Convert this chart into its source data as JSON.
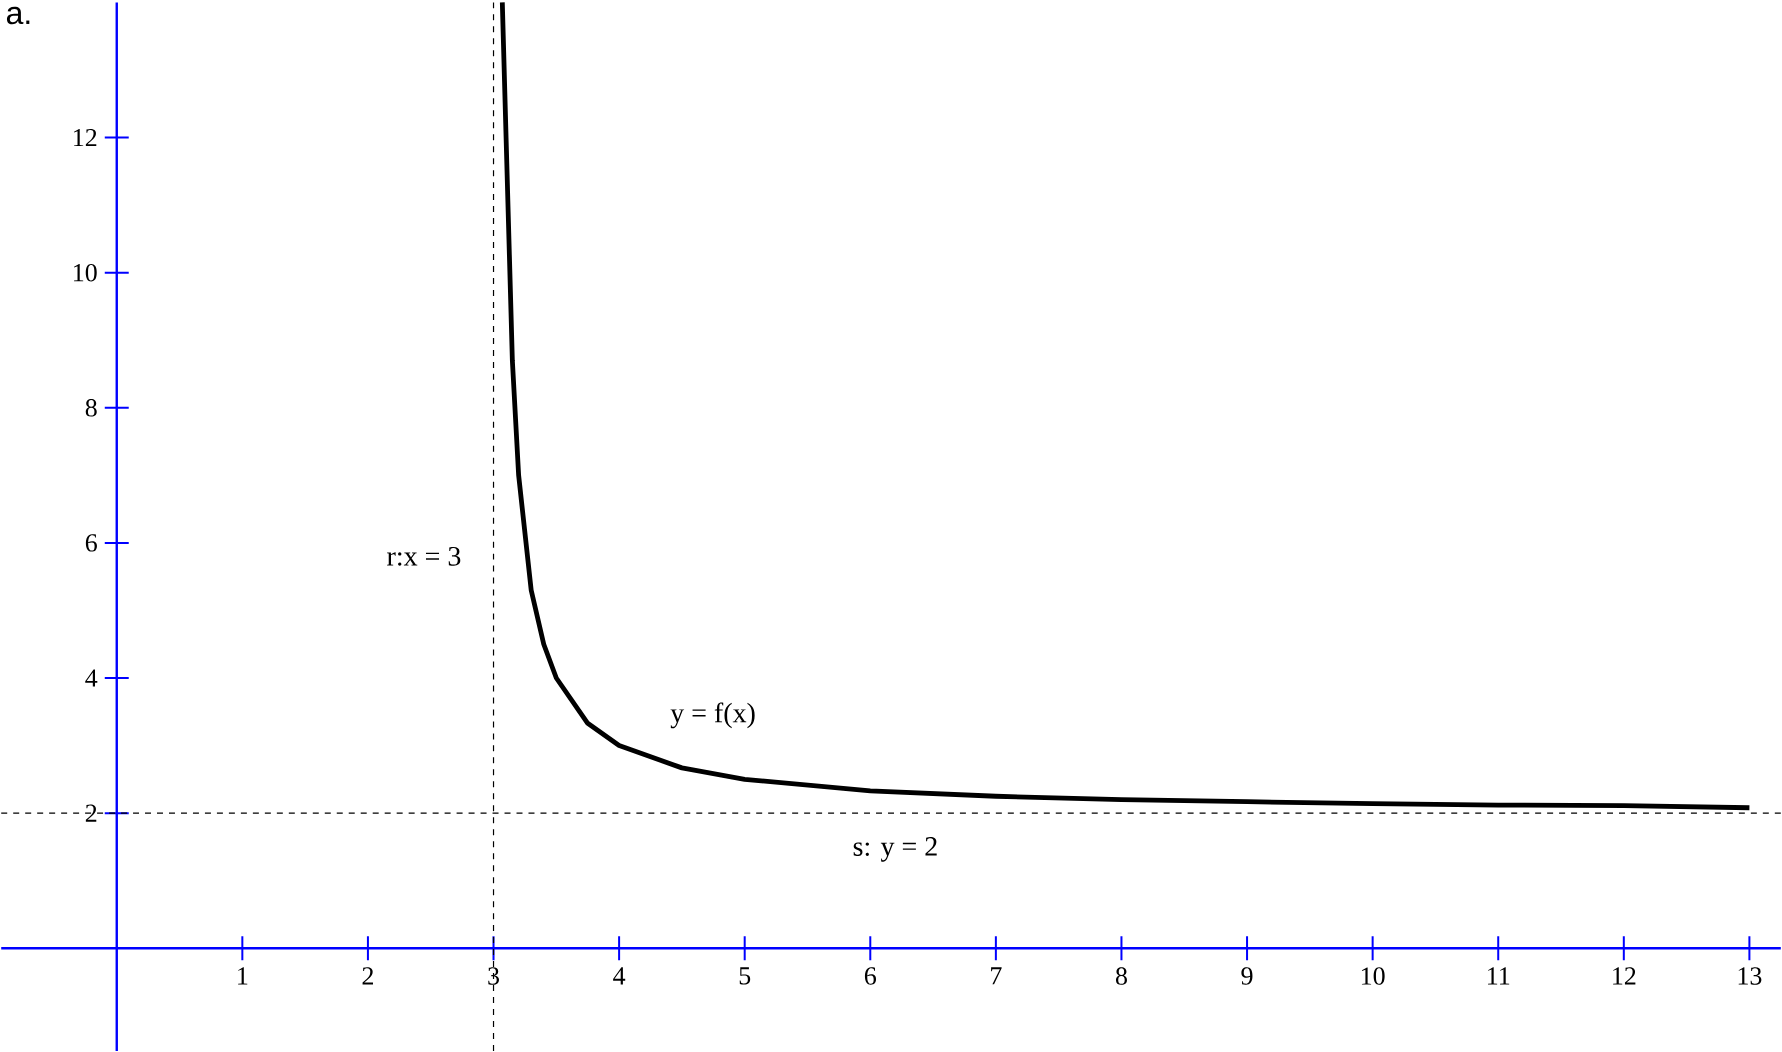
{
  "chart_data": {
    "type": "line",
    "annotations": [
      "a.",
      "y = f(x)"
    ],
    "series": [
      {
        "color": "#000000",
        "line_style": "solid",
        "x": [
          3.07,
          3.1,
          3.15,
          3.2,
          3.3,
          3.4,
          3.5,
          3.75,
          4,
          4.5,
          5,
          6,
          7,
          8,
          9,
          10,
          11,
          12,
          13
        ],
        "values": [
          14,
          12,
          8.7,
          7,
          5.3,
          4.5,
          4,
          3.33,
          3,
          2.67,
          2.5,
          2.33,
          2.25,
          2.2,
          2.17,
          2.14,
          2.12,
          2.11,
          2.08
        ]
      }
    ],
    "ref_lines": [
      {
        "axis": "x",
        "value": 3,
        "label": "r:x = 3",
        "color": "#000000",
        "line_style": "dashed"
      },
      {
        "axis": "y",
        "value": 2,
        "label": "s: y = 2",
        "color": "#000000",
        "line_style": "dashed"
      }
    ],
    "xlim": [
      -0.92,
      13.25
    ],
    "ylim": [
      -1.52,
      14
    ],
    "xticks": [
      1,
      2,
      3,
      4,
      5,
      6,
      7,
      8,
      9,
      10,
      11,
      12,
      13
    ],
    "yticks": [
      2,
      4,
      6,
      8,
      10,
      12
    ],
    "marker": "none",
    "grid": false
  }
}
